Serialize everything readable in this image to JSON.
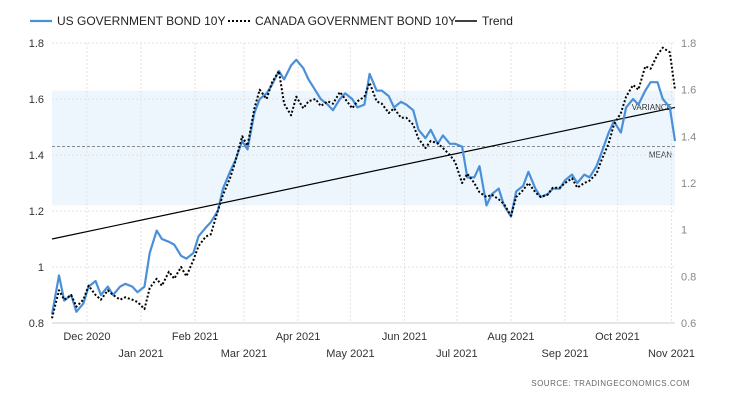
{
  "chart_data": {
    "type": "line",
    "legend_position": "top-left",
    "grid": true,
    "ylim_left": [
      0.8,
      1.8
    ],
    "ylim_right": [
      0.6,
      1.8
    ],
    "yticks_left": [
      "0.8",
      "1",
      "1.2",
      "1.4",
      "1.6",
      "1.8"
    ],
    "yticks_left_values": [
      0.8,
      1.0,
      1.2,
      1.4,
      1.6,
      1.8
    ],
    "yticks_right": [
      "0.6",
      "0.8",
      "1",
      "1.2",
      "1.4",
      "1.6",
      "1.8"
    ],
    "yticks_right_values": [
      0.6,
      0.8,
      1.0,
      1.2,
      1.4,
      1.6,
      1.8
    ],
    "xticks_top_row": [
      {
        "label": "Dec 2020",
        "date": "2020-12-01"
      },
      {
        "label": "Feb 2021",
        "date": "2021-02-01"
      },
      {
        "label": "Apr 2021",
        "date": "2021-04-01"
      },
      {
        "label": "Jun 2021",
        "date": "2021-06-01"
      },
      {
        "label": "Aug 2021",
        "date": "2021-08-01"
      },
      {
        "label": "Oct 2021",
        "date": "2021-10-01"
      }
    ],
    "xticks_bottom_row": [
      {
        "label": "Jan 2021",
        "date": "2021-01-01"
      },
      {
        "label": "Mar 2021",
        "date": "2021-03-01"
      },
      {
        "label": "May 2021",
        "date": "2021-05-01"
      },
      {
        "label": "Jul 2021",
        "date": "2021-07-01"
      },
      {
        "label": "Sep 2021",
        "date": "2021-09-01"
      },
      {
        "label": "Nov 2021",
        "date": "2021-11-01"
      }
    ],
    "variance_band": {
      "label": "VARIANCE",
      "low": 1.22,
      "high": 1.63
    },
    "mean_line": {
      "label": "MEAN",
      "value": 1.43
    },
    "trend": {
      "name": "Trend",
      "start": [
        "2020-11-11",
        1.1
      ],
      "end": [
        "2021-11-03",
        1.57
      ],
      "color": "#000000"
    },
    "series": [
      {
        "name": "US GOVERNMENT BOND 10Y",
        "color": "#4a90d9",
        "style": "solid",
        "axis": "left",
        "x": [
          "2020-11-11",
          "2020-11-15",
          "2020-11-18",
          "2020-11-22",
          "2020-11-25",
          "2020-11-29",
          "2020-12-02",
          "2020-12-06",
          "2020-12-09",
          "2020-12-13",
          "2020-12-16",
          "2020-12-20",
          "2020-12-23",
          "2020-12-27",
          "2020-12-30",
          "2021-01-03",
          "2021-01-06",
          "2021-01-10",
          "2021-01-13",
          "2021-01-17",
          "2021-01-20",
          "2021-01-24",
          "2021-01-27",
          "2021-01-31",
          "2021-02-03",
          "2021-02-07",
          "2021-02-10",
          "2021-02-14",
          "2021-02-17",
          "2021-02-21",
          "2021-02-24",
          "2021-02-28",
          "2021-03-03",
          "2021-03-07",
          "2021-03-10",
          "2021-03-14",
          "2021-03-17",
          "2021-03-21",
          "2021-03-24",
          "2021-03-28",
          "2021-03-31",
          "2021-04-04",
          "2021-04-07",
          "2021-04-11",
          "2021-04-14",
          "2021-04-18",
          "2021-04-21",
          "2021-04-25",
          "2021-04-28",
          "2021-05-02",
          "2021-05-05",
          "2021-05-09",
          "2021-05-12",
          "2021-05-16",
          "2021-05-19",
          "2021-05-23",
          "2021-05-26",
          "2021-05-30",
          "2021-06-02",
          "2021-06-06",
          "2021-06-09",
          "2021-06-13",
          "2021-06-16",
          "2021-06-20",
          "2021-06-23",
          "2021-06-27",
          "2021-06-30",
          "2021-07-04",
          "2021-07-07",
          "2021-07-11",
          "2021-07-14",
          "2021-07-18",
          "2021-07-21",
          "2021-07-25",
          "2021-07-28",
          "2021-08-01",
          "2021-08-04",
          "2021-08-08",
          "2021-08-11",
          "2021-08-15",
          "2021-08-18",
          "2021-08-22",
          "2021-08-25",
          "2021-08-29",
          "2021-09-01",
          "2021-09-05",
          "2021-09-08",
          "2021-09-12",
          "2021-09-15",
          "2021-09-19",
          "2021-09-22",
          "2021-09-26",
          "2021-09-29",
          "2021-10-03",
          "2021-10-06",
          "2021-10-10",
          "2021-10-13",
          "2021-10-17",
          "2021-10-20",
          "2021-10-24",
          "2021-10-27",
          "2021-10-31",
          "2021-11-03"
        ],
        "values": [
          0.83,
          0.97,
          0.88,
          0.9,
          0.84,
          0.87,
          0.93,
          0.95,
          0.9,
          0.93,
          0.9,
          0.93,
          0.94,
          0.93,
          0.91,
          0.93,
          1.05,
          1.13,
          1.1,
          1.09,
          1.08,
          1.04,
          1.03,
          1.05,
          1.11,
          1.14,
          1.16,
          1.2,
          1.28,
          1.34,
          1.38,
          1.45,
          1.42,
          1.55,
          1.6,
          1.62,
          1.65,
          1.7,
          1.67,
          1.72,
          1.74,
          1.71,
          1.67,
          1.63,
          1.6,
          1.58,
          1.56,
          1.6,
          1.62,
          1.6,
          1.57,
          1.58,
          1.69,
          1.63,
          1.63,
          1.61,
          1.57,
          1.59,
          1.58,
          1.56,
          1.49,
          1.46,
          1.49,
          1.44,
          1.47,
          1.44,
          1.44,
          1.43,
          1.32,
          1.32,
          1.36,
          1.22,
          1.26,
          1.28,
          1.22,
          1.18,
          1.27,
          1.29,
          1.34,
          1.28,
          1.25,
          1.26,
          1.28,
          1.28,
          1.31,
          1.33,
          1.3,
          1.33,
          1.32,
          1.36,
          1.41,
          1.48,
          1.52,
          1.48,
          1.57,
          1.6,
          1.58,
          1.63,
          1.66,
          1.66,
          1.6,
          1.57,
          1.45
        ]
      },
      {
        "name": "CANADA GOVERNMENT BOND 10Y",
        "color": "#000000",
        "style": "dotted",
        "axis": "right",
        "x": [
          "2020-11-11",
          "2020-11-15",
          "2020-11-18",
          "2020-11-22",
          "2020-11-25",
          "2020-11-29",
          "2020-12-02",
          "2020-12-06",
          "2020-12-09",
          "2020-12-13",
          "2020-12-16",
          "2020-12-20",
          "2020-12-23",
          "2020-12-27",
          "2020-12-30",
          "2021-01-03",
          "2021-01-06",
          "2021-01-10",
          "2021-01-13",
          "2021-01-17",
          "2021-01-20",
          "2021-01-24",
          "2021-01-27",
          "2021-01-31",
          "2021-02-03",
          "2021-02-07",
          "2021-02-10",
          "2021-02-14",
          "2021-02-17",
          "2021-02-21",
          "2021-02-24",
          "2021-02-28",
          "2021-03-03",
          "2021-03-07",
          "2021-03-10",
          "2021-03-14",
          "2021-03-17",
          "2021-03-21",
          "2021-03-24",
          "2021-03-28",
          "2021-03-31",
          "2021-04-04",
          "2021-04-07",
          "2021-04-11",
          "2021-04-14",
          "2021-04-18",
          "2021-04-21",
          "2021-04-25",
          "2021-04-28",
          "2021-05-02",
          "2021-05-05",
          "2021-05-09",
          "2021-05-12",
          "2021-05-16",
          "2021-05-19",
          "2021-05-23",
          "2021-05-26",
          "2021-05-30",
          "2021-06-02",
          "2021-06-06",
          "2021-06-09",
          "2021-06-13",
          "2021-06-16",
          "2021-06-20",
          "2021-06-23",
          "2021-06-27",
          "2021-06-30",
          "2021-07-04",
          "2021-07-07",
          "2021-07-11",
          "2021-07-14",
          "2021-07-18",
          "2021-07-21",
          "2021-07-25",
          "2021-07-28",
          "2021-08-01",
          "2021-08-04",
          "2021-08-08",
          "2021-08-11",
          "2021-08-15",
          "2021-08-18",
          "2021-08-22",
          "2021-08-25",
          "2021-08-29",
          "2021-09-01",
          "2021-09-05",
          "2021-09-08",
          "2021-09-12",
          "2021-09-15",
          "2021-09-19",
          "2021-09-22",
          "2021-09-26",
          "2021-09-29",
          "2021-10-03",
          "2021-10-06",
          "2021-10-10",
          "2021-10-13",
          "2021-10-17",
          "2021-10-20",
          "2021-10-24",
          "2021-10-27",
          "2021-10-31",
          "2021-11-03"
        ],
        "values": [
          0.62,
          0.74,
          0.7,
          0.72,
          0.67,
          0.7,
          0.76,
          0.72,
          0.7,
          0.74,
          0.72,
          0.7,
          0.71,
          0.7,
          0.69,
          0.66,
          0.75,
          0.79,
          0.76,
          0.82,
          0.79,
          0.84,
          0.8,
          0.87,
          0.93,
          0.97,
          0.98,
          1.08,
          1.15,
          1.22,
          1.29,
          1.4,
          1.36,
          1.52,
          1.6,
          1.56,
          1.63,
          1.68,
          1.54,
          1.49,
          1.57,
          1.52,
          1.55,
          1.56,
          1.53,
          1.55,
          1.54,
          1.59,
          1.56,
          1.52,
          1.55,
          1.57,
          1.63,
          1.55,
          1.54,
          1.5,
          1.52,
          1.48,
          1.48,
          1.45,
          1.39,
          1.35,
          1.38,
          1.37,
          1.35,
          1.32,
          1.29,
          1.2,
          1.24,
          1.2,
          1.16,
          1.14,
          1.15,
          1.13,
          1.11,
          1.06,
          1.14,
          1.17,
          1.2,
          1.16,
          1.14,
          1.15,
          1.18,
          1.18,
          1.2,
          1.22,
          1.18,
          1.2,
          1.21,
          1.24,
          1.3,
          1.37,
          1.45,
          1.5,
          1.57,
          1.62,
          1.6,
          1.7,
          1.69,
          1.75,
          1.78,
          1.76,
          1.6
        ]
      }
    ]
  },
  "source_text": "SOURCE:  TRADINGECONOMICS.COM"
}
